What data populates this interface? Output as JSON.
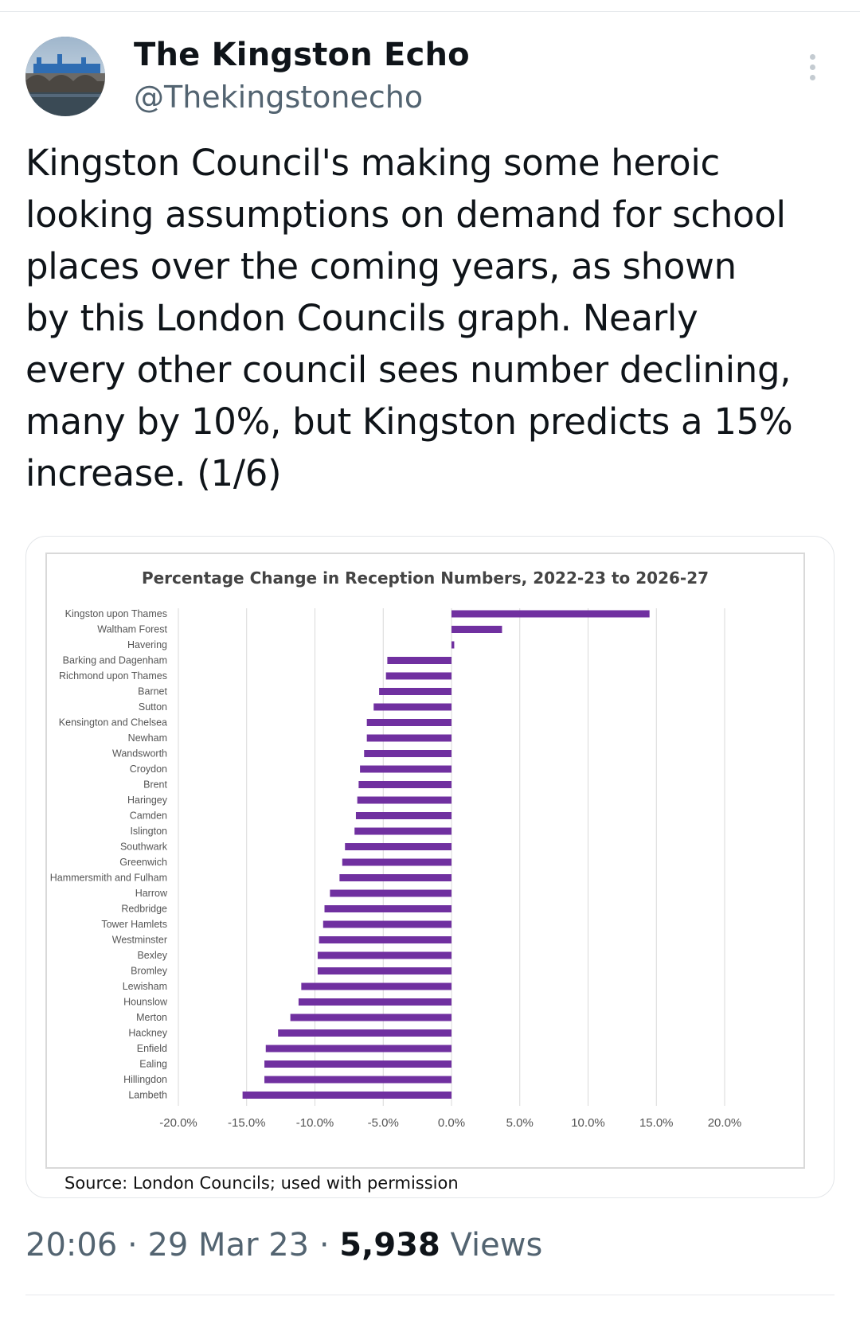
{
  "author": {
    "name": "The Kingston Echo",
    "handle": "@Thekingstonecho"
  },
  "tweet": {
    "lines": [
      "Kingston Council's making some heroic",
      "looking assumptions on demand for school",
      "places over the coming years, as shown",
      "by this London Councils graph. Nearly",
      "every other council sees number declining,",
      "many by 10%, but Kingston predicts a 15%",
      "increase. (1/6)"
    ]
  },
  "media": {
    "source_caption": "Source: London Councils; used with permission"
  },
  "meta": {
    "time": "20:06",
    "separator": "·",
    "date": "29 Mar 23",
    "views_count": "5,938",
    "views_label": "Views"
  },
  "colors": {
    "bar": "#7030a0",
    "grid": "#d9d9d9",
    "muted_text": "#536471"
  },
  "icons": {
    "more": "more-vertical-icon"
  },
  "chart_data": {
    "type": "bar",
    "orientation": "horizontal",
    "title": "Percentage Change in Reception Numbers, 2022-23 to 2026-27",
    "xlabel": "",
    "ylabel": "",
    "xlim": [
      -20,
      20
    ],
    "xticks": [
      -20,
      -15,
      -10,
      -5,
      0,
      5,
      10,
      15,
      20
    ],
    "xtick_labels": [
      "-20.0%",
      "-15.0%",
      "-10.0%",
      "-5.0%",
      "0.0%",
      "5.0%",
      "10.0%",
      "15.0%",
      "20.0%"
    ],
    "grid": true,
    "legend": "none",
    "categories": [
      "Kingston upon Thames",
      "Waltham Forest",
      "Havering",
      "Barking and Dagenham",
      "Richmond upon Thames",
      "Barnet",
      "Sutton",
      "Kensington and Chelsea",
      "Newham",
      "Wandsworth",
      "Croydon",
      "Brent",
      "Haringey",
      "Camden",
      "Islington",
      "Southwark",
      "Greenwich",
      "Hammersmith and Fulham",
      "Harrow",
      "Redbridge",
      "Tower Hamlets",
      "Westminster",
      "Bexley",
      "Bromley",
      "Lewisham",
      "Hounslow",
      "Merton",
      "Hackney",
      "Enfield",
      "Ealing",
      "Hillingdon",
      "Lambeth"
    ],
    "values": [
      14.5,
      3.7,
      0.2,
      -4.7,
      -4.8,
      -5.3,
      -5.7,
      -6.2,
      -6.2,
      -6.4,
      -6.7,
      -6.8,
      -6.9,
      -7.0,
      -7.1,
      -7.8,
      -8.0,
      -8.2,
      -8.9,
      -9.3,
      -9.4,
      -9.7,
      -9.8,
      -9.8,
      -11.0,
      -11.2,
      -11.8,
      -12.7,
      -13.6,
      -13.7,
      -13.7,
      -15.3
    ]
  }
}
